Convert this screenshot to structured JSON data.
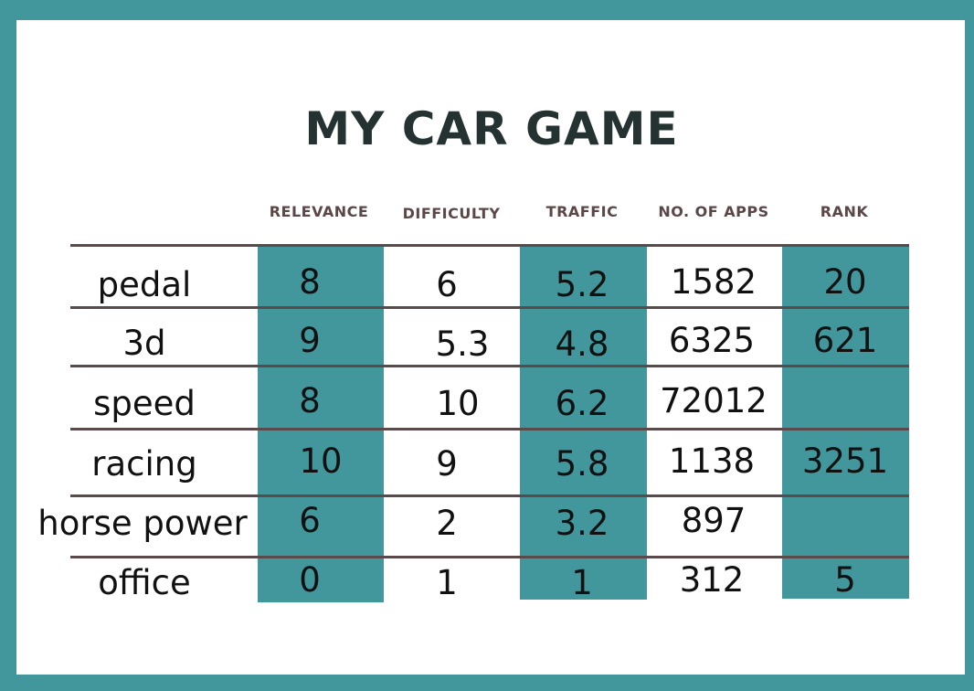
{
  "title": "MY CAR GAME",
  "colors": {
    "accent": "#42979d",
    "rule": "#5a4a4a",
    "title": "#243232",
    "header": "#5b4747"
  },
  "headers": [
    "RELEVANCE",
    "DIFFICULTY",
    "TRAFFIC",
    "NO. OF APPS",
    "RANK"
  ],
  "rows": [
    {
      "keyword": "pedal",
      "relevance": "8",
      "difficulty": "6",
      "traffic": "5.2",
      "apps": "1582",
      "rank": "20"
    },
    {
      "keyword": "3d",
      "relevance": "9",
      "difficulty": "5.3",
      "traffic": "4.8",
      "apps": "6325",
      "rank": "621"
    },
    {
      "keyword": "speed",
      "relevance": "8",
      "difficulty": "10",
      "traffic": "6.2",
      "apps": "72012",
      "rank": ""
    },
    {
      "keyword": "racing",
      "relevance": "10",
      "difficulty": "9",
      "traffic": "5.8",
      "apps": "1138",
      "rank": "3251"
    },
    {
      "keyword": "horse power",
      "relevance": "6",
      "difficulty": "2",
      "traffic": "3.2",
      "apps": "897",
      "rank": ""
    },
    {
      "keyword": "office",
      "relevance": "0",
      "difficulty": "1",
      "traffic": "1",
      "apps": "312",
      "rank": "5"
    }
  ]
}
